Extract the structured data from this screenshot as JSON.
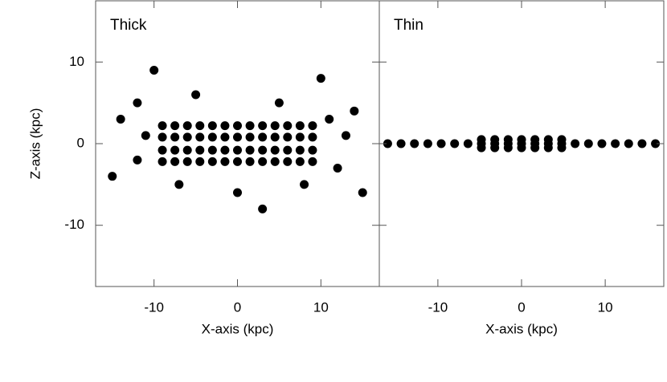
{
  "chart_data": [
    {
      "type": "scatter",
      "title": "Thick",
      "x_label": "X-axis (kpc)",
      "y_label": "Z-axis (kpc)",
      "color": "#000000",
      "xlim": [
        -17,
        17
      ],
      "ylim": [
        -17.5,
        17.5
      ],
      "xticks": [
        -10,
        0,
        10
      ],
      "yticks": [
        -10,
        0,
        10
      ],
      "x": [
        -9,
        -7.5,
        -6,
        -4.5,
        -3,
        -1.5,
        0,
        1.5,
        3,
        4.5,
        6,
        7.5,
        9,
        -9,
        -7.5,
        -6,
        -4.5,
        -3,
        -1.5,
        0,
        1.5,
        3,
        4.5,
        6,
        7.5,
        9,
        -9,
        -7.5,
        -6,
        -4.5,
        -3,
        -1.5,
        0,
        1.5,
        3,
        4.5,
        6,
        7.5,
        9,
        -9,
        -7.5,
        -6,
        -4.5,
        -3,
        -1.5,
        0,
        1.5,
        3,
        4.5,
        6,
        7.5,
        9,
        -14,
        -12,
        -15,
        -12,
        -11,
        11,
        13,
        14,
        12,
        15,
        -5,
        5,
        0,
        -7,
        8,
        -10,
        10,
        3
      ],
      "values": [
        -2.2,
        -2.2,
        -2.2,
        -2.2,
        -2.2,
        -2.2,
        -2.2,
        -2.2,
        -2.2,
        -2.2,
        -2.2,
        -2.2,
        -2.2,
        -0.8,
        -0.8,
        -0.8,
        -0.8,
        -0.8,
        -0.8,
        -0.8,
        -0.8,
        -0.8,
        -0.8,
        -0.8,
        -0.8,
        -0.8,
        0.8,
        0.8,
        0.8,
        0.8,
        0.8,
        0.8,
        0.8,
        0.8,
        0.8,
        0.8,
        0.8,
        0.8,
        0.8,
        2.2,
        2.2,
        2.2,
        2.2,
        2.2,
        2.2,
        2.2,
        2.2,
        2.2,
        2.2,
        2.2,
        2.2,
        2.2,
        3,
        5,
        -4,
        -2,
        1,
        3,
        1,
        4,
        -3,
        -6,
        6,
        5,
        -6,
        -5,
        -5,
        9,
        8,
        -8
      ]
    },
    {
      "type": "scatter",
      "title": "Thin",
      "x_label": "X-axis (kpc)",
      "color": "#000000",
      "xlim": [
        -17,
        17
      ],
      "ylim": [
        -17.5,
        17.5
      ],
      "xticks": [
        -10,
        0,
        10
      ],
      "yticks": [
        -10,
        0,
        10
      ],
      "x": [
        -16,
        -14.4,
        -12.8,
        -11.2,
        -9.6,
        -8,
        -6.4,
        -4.8,
        -3.2,
        -1.6,
        0,
        1.6,
        3.2,
        4.8,
        6.4,
        8,
        9.6,
        11.2,
        12.8,
        14.4,
        16,
        -4.8,
        -3.2,
        -1.6,
        0,
        1.6,
        3.2,
        4.8,
        -4.8,
        -3.2,
        -1.6,
        0,
        1.6,
        3.2,
        4.8
      ],
      "values": [
        0,
        0,
        0,
        0,
        0,
        0,
        0,
        0,
        0,
        0,
        0,
        0,
        0,
        0,
        0,
        0,
        0,
        0,
        0,
        0,
        0,
        0.5,
        0.5,
        0.5,
        0.5,
        0.5,
        0.5,
        0.5,
        -0.5,
        -0.5,
        -0.5,
        -0.5,
        -0.5,
        -0.5,
        -0.5
      ]
    }
  ]
}
